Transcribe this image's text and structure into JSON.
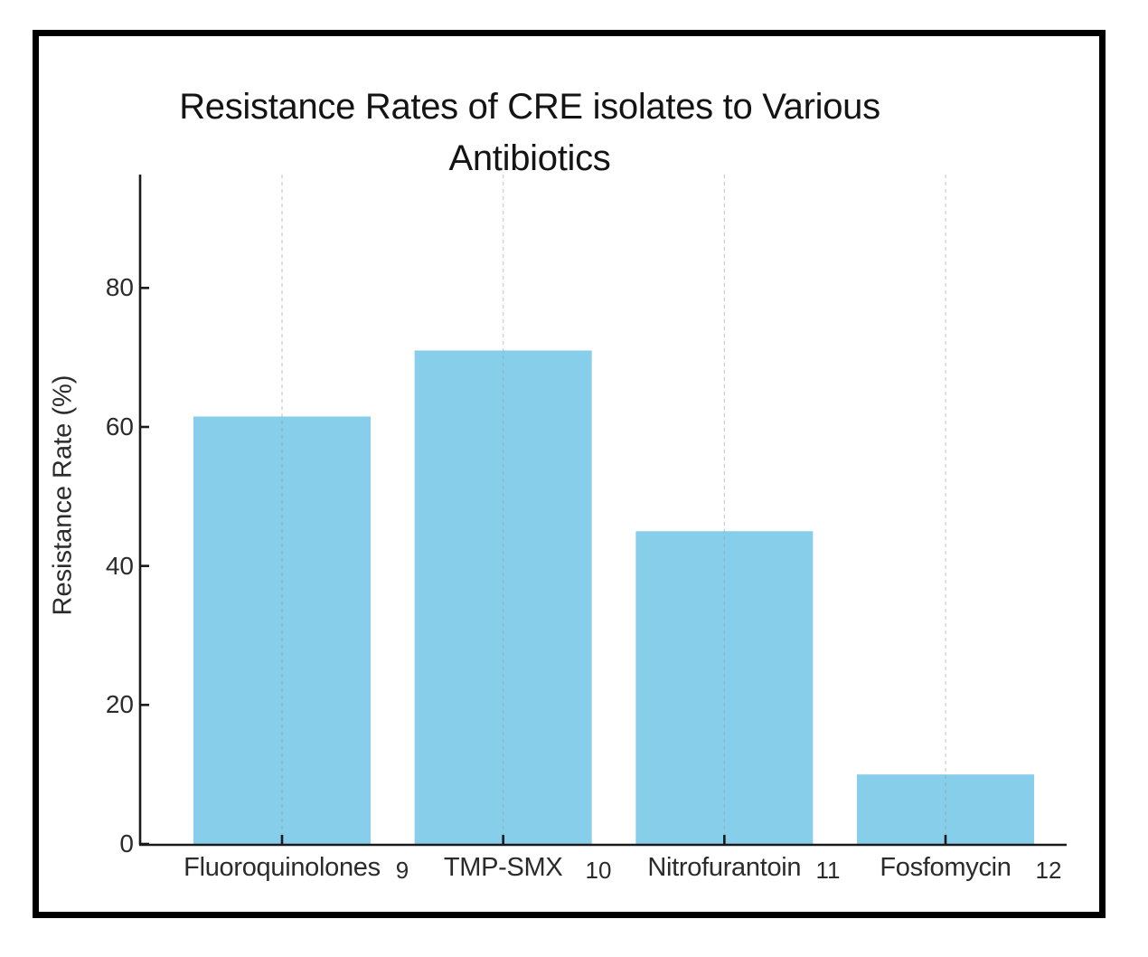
{
  "figure": {
    "background": "#ffffff",
    "frame_color": "#000000"
  },
  "chart_data": {
    "type": "bar",
    "title": "Resistance Rates of CRE isolates to Various Antibiotics",
    "title_lines": [
      "Resistance Rates of CRE isolates to Various",
      "Antibiotics"
    ],
    "ylabel": "Resistance Rate (%)",
    "xlabel": "",
    "categories": [
      "Fluoroquinolones",
      "TMP-SMX",
      "Nitrofurantoin",
      "Fosfomycin"
    ],
    "category_refs": [
      "9",
      "10",
      "11",
      "12"
    ],
    "values": [
      61.5,
      71,
      45,
      10
    ],
    "yticks": [
      0,
      20,
      40,
      60,
      80
    ],
    "ylim": [
      0,
      96
    ],
    "bar_color": "#87CEEB",
    "axis_color": "#1a1a1a",
    "grid": {
      "axis": "x",
      "linestyle": "dashed",
      "color": "#c8c8c8",
      "on": true
    },
    "legend": "none"
  }
}
